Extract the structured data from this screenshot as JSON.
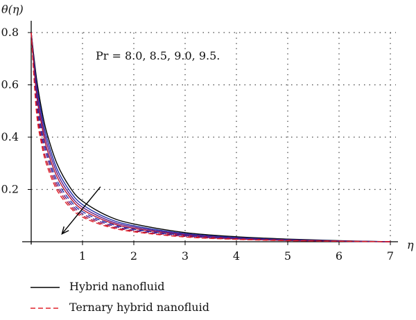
{
  "chart_data": {
    "type": "line",
    "ylabel": "θ(η)",
    "xlabel": "η",
    "xlim": [
      0,
      7
    ],
    "ylim": [
      0,
      0.8
    ],
    "x_ticks": [
      "1",
      "2",
      "3",
      "4",
      "5",
      "6",
      "7"
    ],
    "y_ticks": [
      "0.2",
      "0.4",
      "0.6",
      "0.8"
    ],
    "grid": true,
    "annotation": "Pr = 8.0, 8.5, 9.0, 9.5.",
    "legend_position": "bottom-left",
    "series": [
      {
        "name": "Hybrid nanofluid",
        "style": "solid",
        "color": "#000000",
        "x": [
          0,
          0.1,
          0.2,
          0.3,
          0.5,
          0.75,
          1,
          1.5,
          2,
          3,
          4,
          5,
          6,
          7
        ],
        "values": [
          0.8,
          0.63,
          0.51,
          0.42,
          0.3,
          0.21,
          0.155,
          0.098,
          0.068,
          0.035,
          0.019,
          0.01,
          0.004,
          0.0
        ]
      },
      {
        "name": "",
        "style": "solid",
        "color": "#1f2fa8",
        "x": [
          0,
          0.1,
          0.2,
          0.3,
          0.5,
          0.75,
          1,
          1.5,
          2,
          3,
          4,
          5,
          6,
          7
        ],
        "values": [
          0.8,
          0.61,
          0.49,
          0.4,
          0.28,
          0.195,
          0.142,
          0.089,
          0.061,
          0.031,
          0.016,
          0.008,
          0.003,
          0.0
        ]
      },
      {
        "name": "",
        "style": "solid",
        "color": "#5a1a8a",
        "x": [
          0,
          0.1,
          0.2,
          0.3,
          0.5,
          0.75,
          1,
          1.5,
          2,
          3,
          4,
          5,
          6,
          7
        ],
        "values": [
          0.8,
          0.59,
          0.47,
          0.38,
          0.265,
          0.182,
          0.132,
          0.082,
          0.056,
          0.028,
          0.014,
          0.007,
          0.003,
          0.0
        ]
      },
      {
        "name": "",
        "style": "solid",
        "color": "#b01030",
        "x": [
          0,
          0.1,
          0.2,
          0.3,
          0.5,
          0.75,
          1,
          1.5,
          2,
          3,
          4,
          5,
          6,
          7
        ],
        "values": [
          0.8,
          0.57,
          0.45,
          0.36,
          0.25,
          0.171,
          0.123,
          0.076,
          0.051,
          0.025,
          0.012,
          0.006,
          0.002,
          0.0
        ]
      },
      {
        "name": "Ternary hybrid nanofluid",
        "style": "dashed",
        "color": "#1f2fa8",
        "x": [
          0,
          0.1,
          0.2,
          0.3,
          0.5,
          0.75,
          1,
          1.5,
          2,
          3,
          4,
          5,
          6,
          7
        ],
        "values": [
          0.8,
          0.56,
          0.43,
          0.345,
          0.235,
          0.16,
          0.115,
          0.071,
          0.048,
          0.024,
          0.012,
          0.006,
          0.002,
          0.0
        ]
      },
      {
        "name": "",
        "style": "dashed",
        "color": "#5a1a8a",
        "x": [
          0,
          0.1,
          0.2,
          0.3,
          0.5,
          0.75,
          1,
          1.5,
          2,
          3,
          4,
          5,
          6,
          7
        ],
        "values": [
          0.8,
          0.54,
          0.41,
          0.33,
          0.222,
          0.15,
          0.107,
          0.066,
          0.044,
          0.022,
          0.011,
          0.005,
          0.002,
          0.0
        ]
      },
      {
        "name": "",
        "style": "dashed",
        "color": "#b01030",
        "x": [
          0,
          0.1,
          0.2,
          0.3,
          0.5,
          0.75,
          1,
          1.5,
          2,
          3,
          4,
          5,
          6,
          7
        ],
        "values": [
          0.8,
          0.52,
          0.39,
          0.31,
          0.21,
          0.141,
          0.1,
          0.061,
          0.041,
          0.02,
          0.01,
          0.005,
          0.002,
          0.0
        ]
      },
      {
        "name": "",
        "style": "dashed",
        "color": "#e0202a",
        "x": [
          0,
          0.1,
          0.2,
          0.3,
          0.5,
          0.75,
          1,
          1.5,
          2,
          3,
          4,
          5,
          6,
          7
        ],
        "values": [
          0.8,
          0.5,
          0.375,
          0.295,
          0.198,
          0.133,
          0.094,
          0.057,
          0.038,
          0.018,
          0.009,
          0.004,
          0.002,
          0.0
        ]
      }
    ],
    "arrow": {
      "from": [
        1.35,
        0.21
      ],
      "to": [
        0.6,
        0.03
      ]
    }
  },
  "legend": {
    "solid_label": "Hybrid nanofluid",
    "dashed_label": "Ternary hybrid nanofluid",
    "solid_color": "#000000",
    "dashed_color": "#e0202a"
  }
}
